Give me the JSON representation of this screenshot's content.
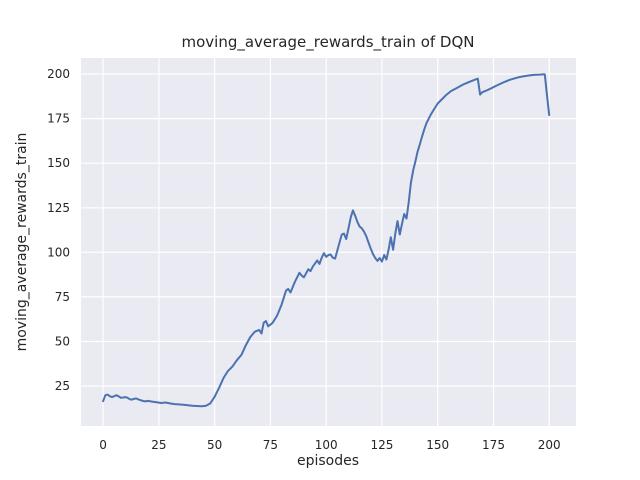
{
  "figure": {
    "background": "#ffffff",
    "plot_background": "#eaeaf2",
    "grid_color": "#ffffff",
    "text_color": "#262626"
  },
  "chart_data": {
    "type": "line",
    "title": "moving_average_rewards_train of DQN",
    "xlabel": "episodes",
    "ylabel": "moving_average_rewards_train",
    "line_color": "#4c72b0",
    "grid": true,
    "legend": "none",
    "xlim": [
      -9.9,
      212
    ],
    "ylim": [
      2.6,
      209
    ],
    "x_ticks": [
      0,
      25,
      50,
      75,
      100,
      125,
      150,
      175,
      200
    ],
    "y_ticks": [
      25,
      50,
      75,
      100,
      125,
      150,
      175,
      200
    ],
    "points": [
      [
        0,
        16.5
      ],
      [
        1,
        19.8
      ],
      [
        2,
        20.2
      ],
      [
        3,
        19.3
      ],
      [
        4,
        18.8
      ],
      [
        5,
        19.3
      ],
      [
        6,
        19.9
      ],
      [
        7,
        19.2
      ],
      [
        8,
        18.4
      ],
      [
        9,
        18.6
      ],
      [
        10,
        18.8
      ],
      [
        11,
        18.4
      ],
      [
        12,
        17.6
      ],
      [
        13,
        17.4
      ],
      [
        14,
        17.9
      ],
      [
        15,
        18.0
      ],
      [
        16,
        17.4
      ],
      [
        17,
        17.0
      ],
      [
        18,
        16.6
      ],
      [
        19,
        16.4
      ],
      [
        20,
        16.7
      ],
      [
        22,
        16.3
      ],
      [
        24,
        15.9
      ],
      [
        26,
        15.5
      ],
      [
        28,
        15.8
      ],
      [
        30,
        15.3
      ],
      [
        32,
        14.9
      ],
      [
        34,
        14.7
      ],
      [
        36,
        14.5
      ],
      [
        38,
        14.2
      ],
      [
        40,
        14.0
      ],
      [
        42,
        13.8
      ],
      [
        44,
        13.7
      ],
      [
        46,
        13.9
      ],
      [
        48,
        15.2
      ],
      [
        50,
        19.0
      ],
      [
        52,
        24.0
      ],
      [
        54,
        29.5
      ],
      [
        56,
        33.5
      ],
      [
        58,
        36.0
      ],
      [
        60,
        39.5
      ],
      [
        62,
        42.5
      ],
      [
        64,
        48.0
      ],
      [
        66,
        52.5
      ],
      [
        68,
        55.5
      ],
      [
        70,
        56.5
      ],
      [
        71,
        54.5
      ],
      [
        72,
        60.5
      ],
      [
        73,
        61.5
      ],
      [
        74,
        58.5
      ],
      [
        75,
        59.5
      ],
      [
        76,
        60.5
      ],
      [
        78,
        64.5
      ],
      [
        80,
        70.5
      ],
      [
        82,
        78.5
      ],
      [
        83,
        79.5
      ],
      [
        84,
        77.5
      ],
      [
        86,
        83.5
      ],
      [
        88,
        88.5
      ],
      [
        89,
        87.0
      ],
      [
        90,
        86.0
      ],
      [
        92,
        90.5
      ],
      [
        93,
        89.5
      ],
      [
        94,
        92.0
      ],
      [
        96,
        95.5
      ],
      [
        97,
        93.5
      ],
      [
        98,
        97.0
      ],
      [
        99,
        99.5
      ],
      [
        100,
        97.5
      ],
      [
        101,
        98.5
      ],
      [
        102,
        98.8
      ],
      [
        103,
        97.0
      ],
      [
        104,
        96.5
      ],
      [
        106,
        105.5
      ],
      [
        107,
        110.0
      ],
      [
        108,
        110.5
      ],
      [
        109,
        107.5
      ],
      [
        110,
        113.5
      ],
      [
        111,
        119.5
      ],
      [
        112,
        123.5
      ],
      [
        113,
        120.5
      ],
      [
        114,
        117.0
      ],
      [
        115,
        114.5
      ],
      [
        116,
        113.5
      ],
      [
        117,
        111.5
      ],
      [
        118,
        109.0
      ],
      [
        119,
        105.5
      ],
      [
        120,
        102.0
      ],
      [
        121,
        99.0
      ],
      [
        122,
        96.8
      ],
      [
        123,
        95.2
      ],
      [
        124,
        96.8
      ],
      [
        125,
        94.8
      ],
      [
        126,
        98.5
      ],
      [
        127,
        96.0
      ],
      [
        128,
        101.5
      ],
      [
        129,
        108.5
      ],
      [
        130,
        101.5
      ],
      [
        131,
        110.5
      ],
      [
        132,
        117.5
      ],
      [
        133,
        110.0
      ],
      [
        134,
        116.0
      ],
      [
        135,
        121.5
      ],
      [
        136,
        119.0
      ],
      [
        137,
        128.0
      ],
      [
        138,
        139.0
      ],
      [
        139,
        146.0
      ],
      [
        140,
        151.0
      ],
      [
        141,
        156.5
      ],
      [
        142,
        160.5
      ],
      [
        143,
        165.0
      ],
      [
        144,
        169.0
      ],
      [
        145,
        172.5
      ],
      [
        146,
        175.0
      ],
      [
        147,
        177.5
      ],
      [
        148,
        179.5
      ],
      [
        150,
        183.5
      ],
      [
        152,
        186.0
      ],
      [
        154,
        188.5
      ],
      [
        156,
        190.5
      ],
      [
        158,
        191.8
      ],
      [
        160,
        193.2
      ],
      [
        162,
        194.5
      ],
      [
        164,
        195.5
      ],
      [
        166,
        196.5
      ],
      [
        167,
        197.0
      ],
      [
        168,
        197.4
      ],
      [
        169,
        188.5
      ],
      [
        170,
        189.8
      ],
      [
        172,
        190.8
      ],
      [
        174,
        192.0
      ],
      [
        176,
        193.3
      ],
      [
        178,
        194.5
      ],
      [
        180,
        195.6
      ],
      [
        182,
        196.6
      ],
      [
        184,
        197.4
      ],
      [
        186,
        198.1
      ],
      [
        188,
        198.6
      ],
      [
        190,
        199.0
      ],
      [
        192,
        199.4
      ],
      [
        194,
        199.6
      ],
      [
        196,
        199.7
      ],
      [
        197,
        199.8
      ],
      [
        198,
        199.8
      ],
      [
        199,
        188.0
      ],
      [
        200,
        177.0
      ]
    ]
  }
}
